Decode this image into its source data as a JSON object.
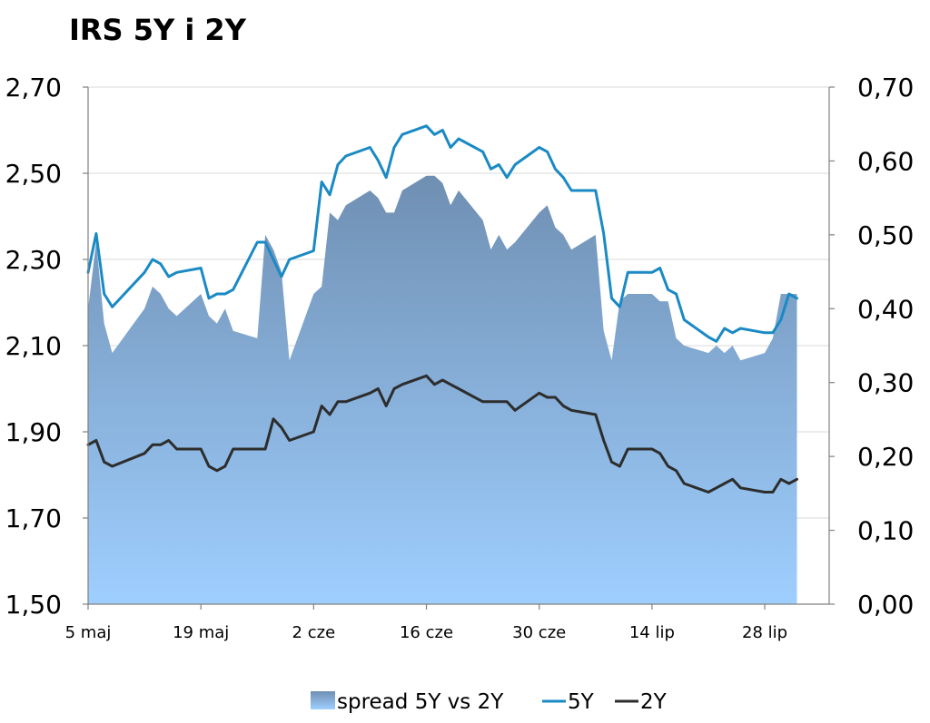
{
  "chart_data": {
    "type": "line",
    "title": "IRS 5Y i 2Y",
    "x": [
      "2008-05-05",
      "2008-05-06",
      "2008-05-07",
      "2008-05-08",
      "2008-05-12",
      "2008-05-13",
      "2008-05-14",
      "2008-05-15",
      "2008-05-16",
      "2008-05-19",
      "2008-05-20",
      "2008-05-21",
      "2008-05-22",
      "2008-05-23",
      "2008-05-26",
      "2008-05-27",
      "2008-05-28",
      "2008-05-29",
      "2008-05-30",
      "2008-06-02",
      "2008-06-03",
      "2008-06-04",
      "2008-06-05",
      "2008-06-06",
      "2008-06-09",
      "2008-06-10",
      "2008-06-11",
      "2008-06-12",
      "2008-06-13",
      "2008-06-16",
      "2008-06-17",
      "2008-06-18",
      "2008-06-19",
      "2008-06-20",
      "2008-06-23",
      "2008-06-24",
      "2008-06-25",
      "2008-06-26",
      "2008-06-27",
      "2008-06-30",
      "2008-07-01",
      "2008-07-02",
      "2008-07-03",
      "2008-07-04",
      "2008-07-07",
      "2008-07-08",
      "2008-07-09",
      "2008-07-10",
      "2008-07-11",
      "2008-07-14",
      "2008-07-15",
      "2008-07-16",
      "2008-07-17",
      "2008-07-18",
      "2008-07-21",
      "2008-07-22",
      "2008-07-23",
      "2008-07-24",
      "2008-07-25",
      "2008-07-28",
      "2008-07-29",
      "2008-07-30",
      "2008-07-31",
      "2008-08-01"
    ],
    "x_ticks": [
      "5 maj",
      "19 maj",
      "2 cze",
      "16 cze",
      "30 cze",
      "14 lip",
      "28 lip"
    ],
    "x_tick_dates": [
      "2008-05-05",
      "2008-05-19",
      "2008-06-02",
      "2008-06-16",
      "2008-06-30",
      "2008-07-14",
      "2008-07-28"
    ],
    "x_range": [
      "2008-05-05",
      "2008-08-05"
    ],
    "ylim_left": [
      1.5,
      2.7
    ],
    "ylim_right": [
      0.0,
      0.7
    ],
    "y_ticks_left": [
      "2,70",
      "2,50",
      "2,30",
      "2,10",
      "1,90",
      "1,70",
      "1,50"
    ],
    "y_ticks_right": [
      "0,70",
      "0,60",
      "0,50",
      "0,40",
      "0,30",
      "0,20",
      "0,10",
      "0,00"
    ],
    "series": [
      {
        "name": "spread 5Y vs 2Y",
        "kind": "area",
        "axis": "right",
        "color_top": "#6f8fb2",
        "color_bottom": "#9fcfff",
        "values": [
          0.4,
          0.49,
          0.38,
          0.34,
          0.4,
          0.43,
          0.42,
          0.4,
          0.39,
          0.42,
          0.39,
          0.38,
          0.4,
          0.37,
          0.36,
          0.5,
          0.48,
          0.45,
          0.33,
          0.42,
          0.43,
          0.53,
          0.52,
          0.54,
          0.56,
          0.55,
          0.53,
          0.53,
          0.56,
          0.58,
          0.58,
          0.57,
          0.54,
          0.56,
          0.52,
          0.48,
          0.5,
          0.48,
          0.49,
          0.53,
          0.54,
          0.51,
          0.5,
          0.48,
          0.5,
          0.37,
          0.33,
          0.41,
          0.42,
          0.42,
          0.41,
          0.41,
          0.36,
          0.35,
          0.34,
          0.35,
          0.34,
          0.35,
          0.33,
          0.34,
          0.36,
          0.42,
          0.42,
          0.42
        ]
      },
      {
        "name": "5Y",
        "kind": "line",
        "axis": "left",
        "color": "#1a8ac4",
        "values": [
          2.27,
          2.36,
          2.22,
          2.19,
          2.27,
          2.3,
          2.29,
          2.26,
          2.27,
          2.28,
          2.21,
          2.22,
          2.22,
          2.23,
          2.34,
          2.34,
          2.3,
          2.26,
          2.3,
          2.32,
          2.48,
          2.45,
          2.52,
          2.54,
          2.56,
          2.53,
          2.49,
          2.56,
          2.59,
          2.61,
          2.59,
          2.6,
          2.56,
          2.58,
          2.55,
          2.51,
          2.52,
          2.49,
          2.52,
          2.56,
          2.55,
          2.51,
          2.49,
          2.46,
          2.46,
          2.36,
          2.21,
          2.19,
          2.27,
          2.27,
          2.28,
          2.23,
          2.22,
          2.16,
          2.12,
          2.11,
          2.14,
          2.13,
          2.14,
          2.13,
          2.13,
          2.16,
          2.22,
          2.21
        ]
      },
      {
        "name": "2Y",
        "kind": "line",
        "axis": "left",
        "color": "#2d2d2d",
        "values": [
          1.87,
          1.88,
          1.83,
          1.82,
          1.85,
          1.87,
          1.87,
          1.88,
          1.86,
          1.86,
          1.82,
          1.81,
          1.82,
          1.86,
          1.86,
          1.86,
          1.93,
          1.91,
          1.88,
          1.9,
          1.96,
          1.94,
          1.97,
          1.97,
          1.99,
          2.0,
          1.96,
          2.0,
          2.01,
          2.03,
          2.01,
          2.02,
          2.01,
          2.0,
          1.97,
          1.97,
          1.97,
          1.97,
          1.95,
          1.99,
          1.98,
          1.98,
          1.96,
          1.95,
          1.94,
          1.88,
          1.83,
          1.82,
          1.86,
          1.86,
          1.85,
          1.82,
          1.81,
          1.78,
          1.76,
          1.77,
          1.78,
          1.79,
          1.77,
          1.76,
          1.76,
          1.79,
          1.78,
          1.79
        ]
      }
    ],
    "legend": [
      "spread 5Y vs 2Y",
      "5Y",
      "2Y"
    ],
    "legend_position": "bottom",
    "grid": true
  }
}
